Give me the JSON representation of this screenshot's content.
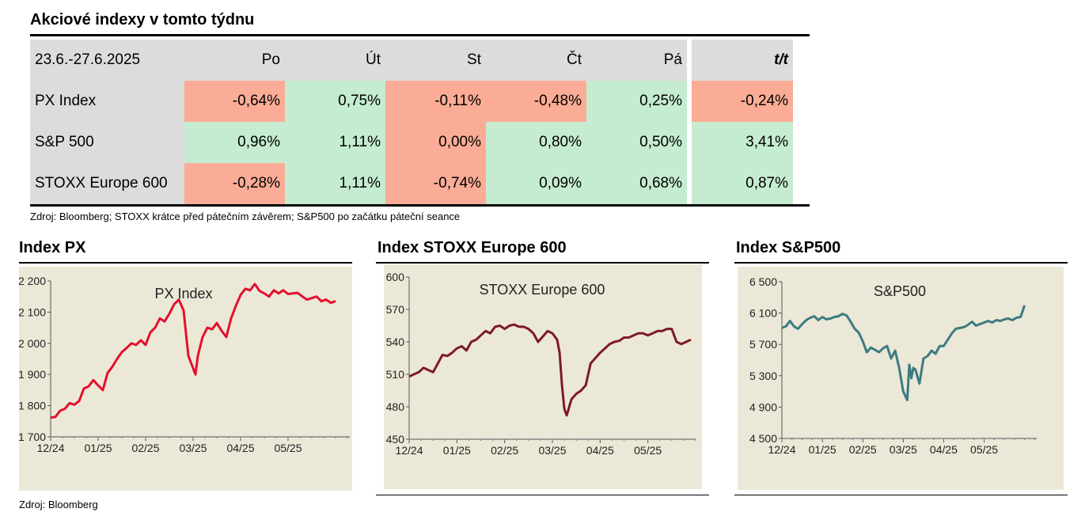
{
  "table": {
    "title": "Akciové indexy v tomto týdnu",
    "period": "23.6.-27.6.2025",
    "days": [
      "Po",
      "Út",
      "St",
      "Čt",
      "Pá"
    ],
    "weekly_label": "t/t",
    "rows": [
      {
        "name": "PX Index",
        "values": [
          "-0,64%",
          "0,75%",
          "-0,11%",
          "-0,48%",
          "0,25%"
        ],
        "weekly": "-0,24%"
      },
      {
        "name": "S&P 500",
        "values": [
          "0,96%",
          "1,11%",
          "0,00%",
          "0,80%",
          "0,50%"
        ],
        "weekly": "3,41%"
      },
      {
        "name": "STOXX Europe 600",
        "values": [
          "-0,28%",
          "1,11%",
          "-0,74%",
          "0,09%",
          "0,68%"
        ],
        "weekly": "0,87%"
      }
    ],
    "source": "Zdroj: Bloomberg; STOXX krátce před pátečním závěrem; S&P500 po začátku páteční seance",
    "colors": {
      "negative": "#fbac96",
      "positive": "#c5ecd0",
      "header": "#dcdcdc"
    }
  },
  "footer_source": "Zdroj: Bloomberg",
  "chart_data": [
    {
      "type": "line",
      "panel_title": "Index PX",
      "title": "PX Index",
      "color": "#e3102e",
      "ylim": [
        1700,
        2200
      ],
      "yticks": [
        1700,
        1800,
        1900,
        2000,
        2100,
        2200
      ],
      "yticklabels": [
        "1 700",
        "1 800",
        "1 900",
        "2 000",
        "2 100",
        "2 200"
      ],
      "xticks": [
        0,
        1,
        2,
        3,
        4,
        5
      ],
      "xticklabels": [
        "12/24",
        "01/25",
        "02/25",
        "03/25",
        "04/25",
        "05/25"
      ],
      "xlim": [
        0,
        6.3
      ],
      "x": [
        0.0,
        0.1,
        0.2,
        0.3,
        0.4,
        0.5,
        0.6,
        0.7,
        0.8,
        0.9,
        1.0,
        1.1,
        1.2,
        1.3,
        1.4,
        1.5,
        1.6,
        1.7,
        1.8,
        1.9,
        2.0,
        2.1,
        2.2,
        2.3,
        2.4,
        2.5,
        2.6,
        2.7,
        2.8,
        2.9,
        3.0,
        3.05,
        3.1,
        3.15,
        3.2,
        3.3,
        3.4,
        3.5,
        3.6,
        3.7,
        3.8,
        3.9,
        4.0,
        4.1,
        4.2,
        4.3,
        4.4,
        4.5,
        4.6,
        4.7,
        4.8,
        4.9,
        5.0,
        5.1,
        5.2,
        5.3,
        5.4,
        5.5,
        5.6,
        5.7,
        5.8,
        5.9,
        6.0
      ],
      "values": [
        1762,
        1764,
        1784,
        1790,
        1808,
        1803,
        1815,
        1855,
        1862,
        1882,
        1865,
        1850,
        1905,
        1925,
        1950,
        1972,
        1985,
        2000,
        1995,
        2010,
        1995,
        2035,
        2050,
        2080,
        2070,
        2095,
        2125,
        2140,
        2105,
        1960,
        1920,
        1900,
        1960,
        1990,
        2020,
        2050,
        2045,
        2065,
        2040,
        2020,
        2080,
        2120,
        2155,
        2175,
        2170,
        2190,
        2168,
        2160,
        2150,
        2170,
        2160,
        2170,
        2158,
        2160,
        2162,
        2150,
        2140,
        2145,
        2150,
        2135,
        2140,
        2130,
        2135
      ]
    },
    {
      "type": "line",
      "panel_title": "Index STOXX Europe 600",
      "title": "STOXX Europe 600",
      "color": "#7d1b22",
      "ylim": [
        450,
        600
      ],
      "yticks": [
        450,
        480,
        510,
        540,
        570,
        600
      ],
      "yticklabels": [
        "450",
        "480",
        "510",
        "540",
        "570",
        "600"
      ],
      "xticks": [
        0,
        1,
        2,
        3,
        4,
        5
      ],
      "xticklabels": [
        "12/24",
        "01/25",
        "02/25",
        "03/25",
        "04/25",
        "05/25"
      ],
      "xlim": [
        0,
        6.0
      ],
      "x": [
        0.0,
        0.1,
        0.2,
        0.3,
        0.4,
        0.5,
        0.6,
        0.7,
        0.8,
        0.9,
        1.0,
        1.1,
        1.2,
        1.3,
        1.4,
        1.5,
        1.6,
        1.7,
        1.8,
        1.9,
        2.0,
        2.1,
        2.2,
        2.3,
        2.4,
        2.5,
        2.6,
        2.7,
        2.8,
        2.9,
        3.0,
        3.1,
        3.15,
        3.2,
        3.25,
        3.3,
        3.4,
        3.5,
        3.6,
        3.7,
        3.8,
        3.9,
        4.0,
        4.1,
        4.2,
        4.3,
        4.4,
        4.5,
        4.6,
        4.7,
        4.8,
        4.9,
        5.0,
        5.1,
        5.2,
        5.3,
        5.4,
        5.5,
        5.6,
        5.7,
        5.8,
        5.9
      ],
      "values": [
        508,
        510,
        512,
        516,
        514,
        512,
        520,
        528,
        527,
        530,
        534,
        536,
        532,
        540,
        542,
        546,
        550,
        548,
        554,
        555,
        552,
        555,
        556,
        554,
        554,
        552,
        548,
        540,
        545,
        550,
        548,
        542,
        530,
        500,
        478,
        472,
        487,
        492,
        495,
        500,
        520,
        525,
        530,
        534,
        538,
        540,
        541,
        544,
        544,
        546,
        548,
        548,
        546,
        548,
        550,
        550,
        552,
        552,
        540,
        538,
        540,
        542
      ]
    },
    {
      "type": "line",
      "panel_title": "Index S&P500",
      "title": "S&P500",
      "color": "#3c7b82",
      "ylim": [
        4500,
        6500
      ],
      "yticks": [
        4500,
        4900,
        5300,
        5700,
        6100,
        6500
      ],
      "yticklabels": [
        "4 500",
        "4 900",
        "5 300",
        "5 700",
        "6 100",
        "6 500"
      ],
      "xticks": [
        0,
        1,
        2,
        3,
        4,
        5
      ],
      "xticklabels": [
        "12/24",
        "01/25",
        "02/25",
        "03/25",
        "04/25",
        "05/25"
      ],
      "xlim": [
        0,
        6.3
      ],
      "x": [
        0.0,
        0.1,
        0.2,
        0.3,
        0.4,
        0.5,
        0.6,
        0.7,
        0.8,
        0.9,
        1.0,
        1.1,
        1.2,
        1.3,
        1.4,
        1.5,
        1.6,
        1.7,
        1.8,
        1.9,
        2.0,
        2.1,
        2.2,
        2.3,
        2.4,
        2.5,
        2.6,
        2.7,
        2.8,
        2.9,
        3.0,
        3.1,
        3.15,
        3.2,
        3.25,
        3.3,
        3.4,
        3.5,
        3.6,
        3.7,
        3.8,
        3.9,
        4.0,
        4.1,
        4.2,
        4.3,
        4.4,
        4.5,
        4.6,
        4.7,
        4.8,
        4.9,
        5.0,
        5.1,
        5.2,
        5.3,
        5.4,
        5.5,
        5.6,
        5.7,
        5.8,
        5.9,
        6.0
      ],
      "values": [
        5910,
        5930,
        6000,
        5930,
        5900,
        5960,
        6010,
        6040,
        6060,
        6010,
        6050,
        6020,
        6030,
        6050,
        6060,
        6090,
        6070,
        5990,
        5900,
        5850,
        5740,
        5600,
        5660,
        5630,
        5600,
        5650,
        5680,
        5520,
        5620,
        5400,
        5100,
        4990,
        5440,
        5270,
        5400,
        5380,
        5200,
        5520,
        5550,
        5620,
        5580,
        5680,
        5680,
        5760,
        5840,
        5900,
        5910,
        5920,
        5950,
        5990,
        5940,
        5960,
        5980,
        6000,
        5980,
        6010,
        6000,
        6020,
        6030,
        6010,
        6040,
        6050,
        6200
      ]
    }
  ]
}
